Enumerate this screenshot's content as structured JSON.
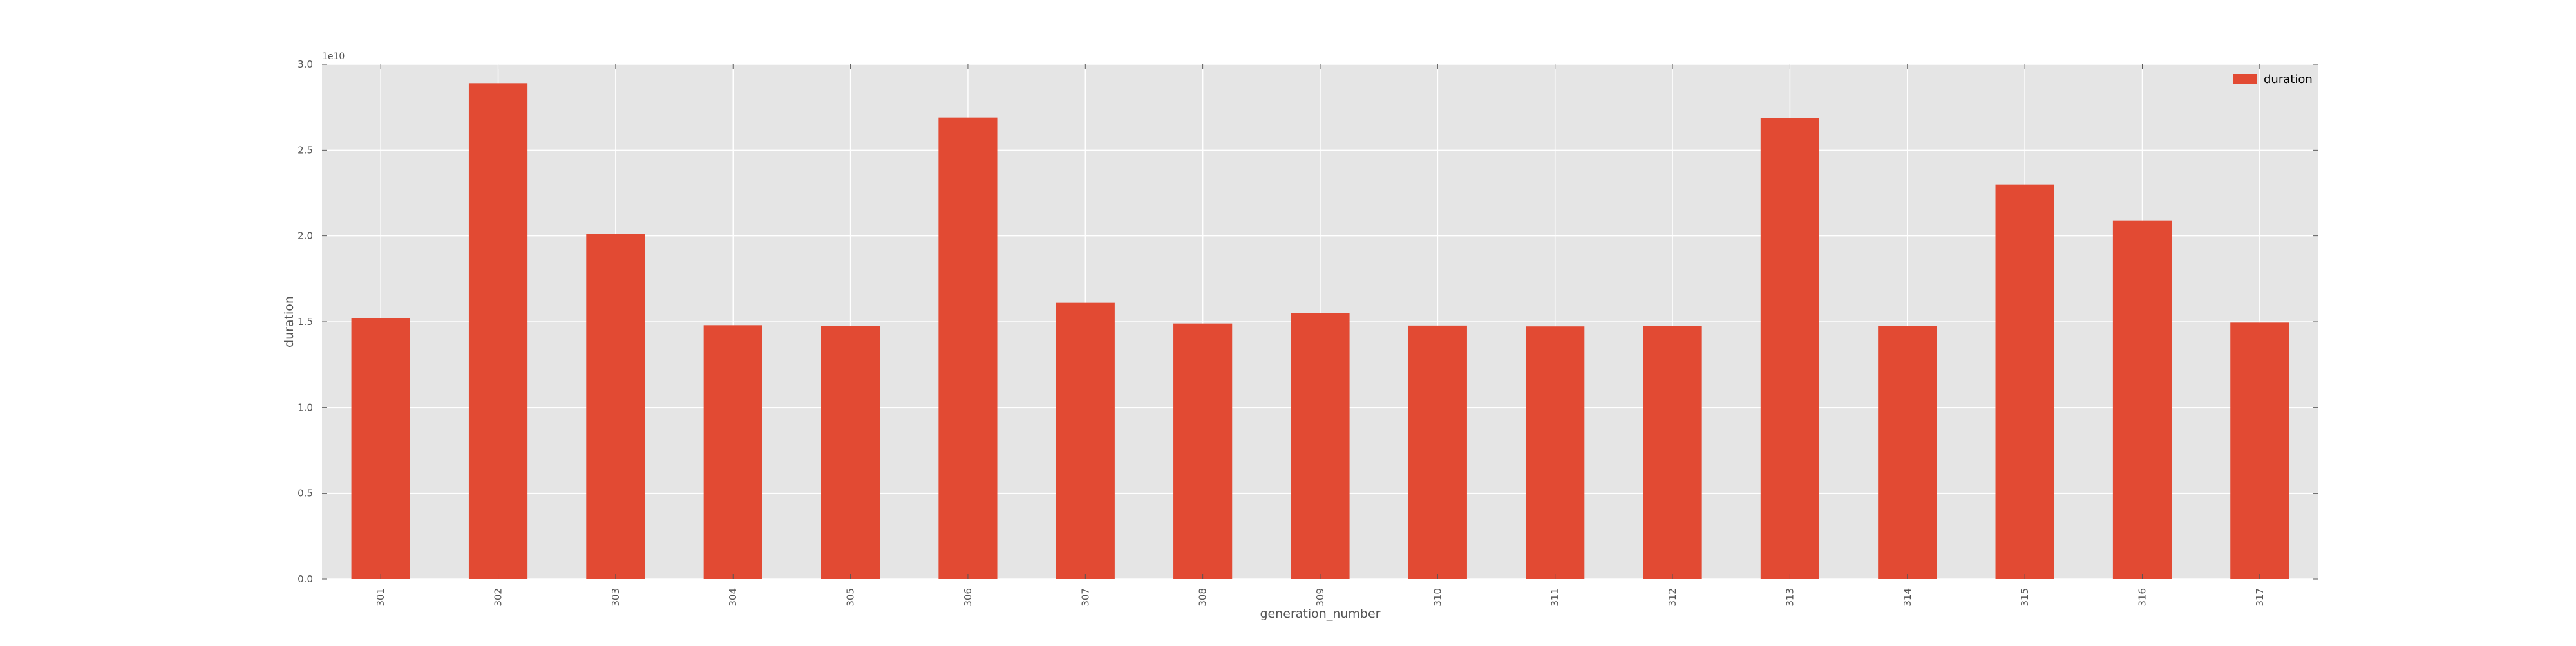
{
  "chart_data": {
    "type": "bar",
    "categories": [
      "301",
      "302",
      "303",
      "304",
      "305",
      "306",
      "307",
      "308",
      "309",
      "310",
      "311",
      "312",
      "313",
      "314",
      "315",
      "316",
      "317"
    ],
    "series": [
      {
        "name": "duration",
        "color": "#E24A33",
        "values": [
          15200000000,
          28900000000,
          20100000000,
          14800000000,
          14750000000,
          26900000000,
          16100000000,
          14900000000,
          15500000000,
          14780000000,
          14730000000,
          14740000000,
          26850000000,
          14760000000,
          23000000000,
          20900000000,
          14950000000
        ]
      }
    ],
    "xlabel": "generation_number",
    "ylabel": "duration",
    "ylim": [
      0,
      30000000000
    ],
    "yticks": [
      0,
      5000000000,
      10000000000,
      15000000000,
      20000000000,
      25000000000,
      30000000000
    ],
    "ytick_labels": [
      "0.0",
      "0.5",
      "1.0",
      "1.5",
      "2.0",
      "2.5",
      "3.0"
    ],
    "y_offset_label": "1e10",
    "grid": true,
    "legend_position": "top-right",
    "background_color": "#E5E5E5",
    "grid_color": "#FFFFFF"
  }
}
